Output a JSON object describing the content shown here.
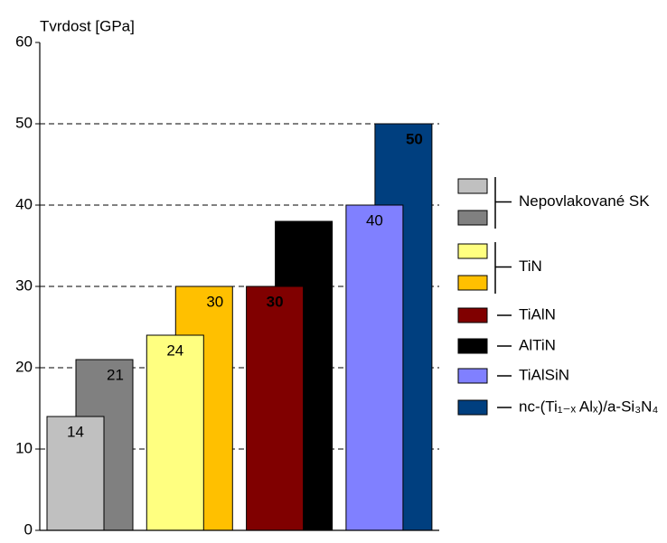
{
  "chart_data": {
    "type": "bar",
    "title": "Tvrdost [GPa]",
    "ylim": [
      0,
      60
    ],
    "yticks": [
      0,
      10,
      20,
      30,
      40,
      50,
      60
    ],
    "grid": true,
    "series": [
      {
        "name": "Nepovlakované SK",
        "color": "#c0c0c0",
        "values": [
          14
        ]
      },
      {
        "color": "#808080",
        "values": [
          21
        ]
      },
      {
        "name": "TiN",
        "color": "#ffff80",
        "values": [
          24
        ]
      },
      {
        "color": "#ffc000",
        "values": [
          30
        ]
      },
      {
        "name": "TiAlN",
        "color": "#800000",
        "values": [
          30
        ]
      },
      {
        "name": "AlTiN",
        "color": "#000000",
        "values": [
          38
        ]
      },
      {
        "name": "TiAlSiN",
        "color": "#8080ff",
        "values": [
          40
        ]
      },
      {
        "name": "nc-(Ti₁₋ₓ Alₓ)/a-Si₃N₄",
        "color": "#003f7f",
        "values": [
          50
        ]
      }
    ]
  }
}
